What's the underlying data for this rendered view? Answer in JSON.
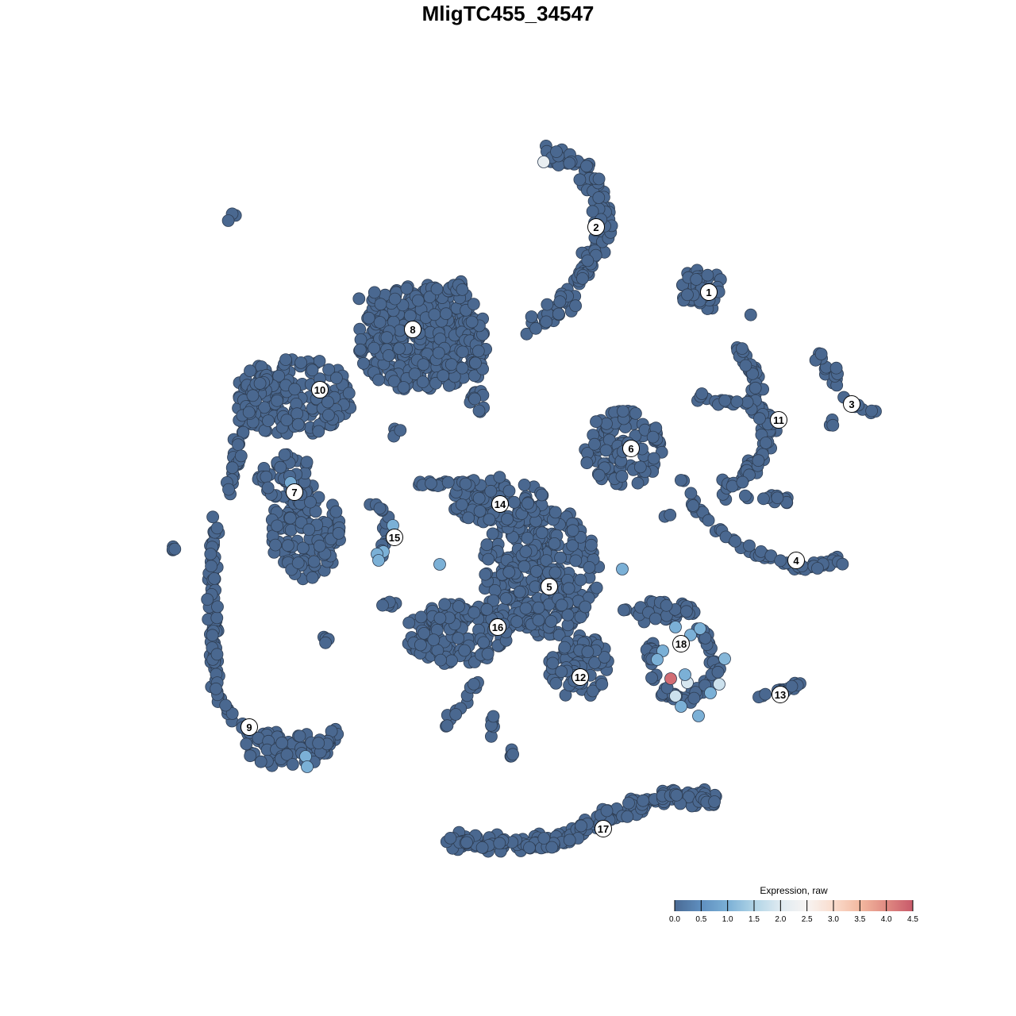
{
  "chart_data": {
    "type": "scatter",
    "title": "MligTC455_34547",
    "xlabel": "",
    "ylabel": "",
    "axes_visible": false,
    "grid": false,
    "point_default_color": "#4a6890",
    "cluster_labels": [
      "1",
      "2",
      "3",
      "4",
      "5",
      "6",
      "7",
      "8",
      "9",
      "10",
      "11",
      "12",
      "13",
      "14",
      "15",
      "16",
      "17",
      "18"
    ],
    "highlighted_cells": [
      {
        "cluster": "2",
        "expression": 2.2
      },
      {
        "cluster": "18",
        "expression": 4.3
      },
      {
        "cluster": "18",
        "expression": 1.8
      },
      {
        "cluster": "18",
        "expression": 1.8
      },
      {
        "cluster": "18",
        "expression": 1.9
      },
      {
        "cluster": "18",
        "expression": 1.0
      },
      {
        "cluster": "18",
        "expression": 1.0
      },
      {
        "cluster": "18",
        "expression": 1.0
      },
      {
        "cluster": "18",
        "expression": 1.0
      },
      {
        "cluster": "18",
        "expression": 1.0
      },
      {
        "cluster": "18",
        "expression": 1.0
      },
      {
        "cluster": "18",
        "expression": 1.0
      },
      {
        "cluster": "18",
        "expression": 1.0
      },
      {
        "cluster": "18",
        "expression": 1.1
      },
      {
        "cluster": "18",
        "expression": 1.0
      },
      {
        "cluster": "15",
        "expression": 1.0
      },
      {
        "cluster": "15",
        "expression": 1.0
      },
      {
        "cluster": "15",
        "expression": 1.0
      },
      {
        "cluster": "15",
        "expression": 1.0
      },
      {
        "cluster": "9",
        "expression": 1.0
      },
      {
        "cluster": "9",
        "expression": 1.0
      },
      {
        "cluster": "5",
        "expression": 1.0
      },
      {
        "cluster": "5",
        "expression": 1.0
      },
      {
        "cluster": "7",
        "expression": 0.9
      }
    ],
    "legend": {
      "title": "Expression, raw",
      "position": "bottom-right",
      "range": [
        0,
        4.5
      ],
      "ticks": [
        "0.0",
        "0.5",
        "1.0",
        "1.5",
        "2.0",
        "2.5",
        "3.0",
        "3.5",
        "4.0",
        "4.5"
      ],
      "colors": [
        "#4a6a94",
        "#5f8fbf",
        "#7bb0d6",
        "#b0d4e6",
        "#dfeaf1",
        "#f7f4f2",
        "#fadccd",
        "#f3b9a0",
        "#e08a82",
        "#c85a6a"
      ]
    }
  }
}
